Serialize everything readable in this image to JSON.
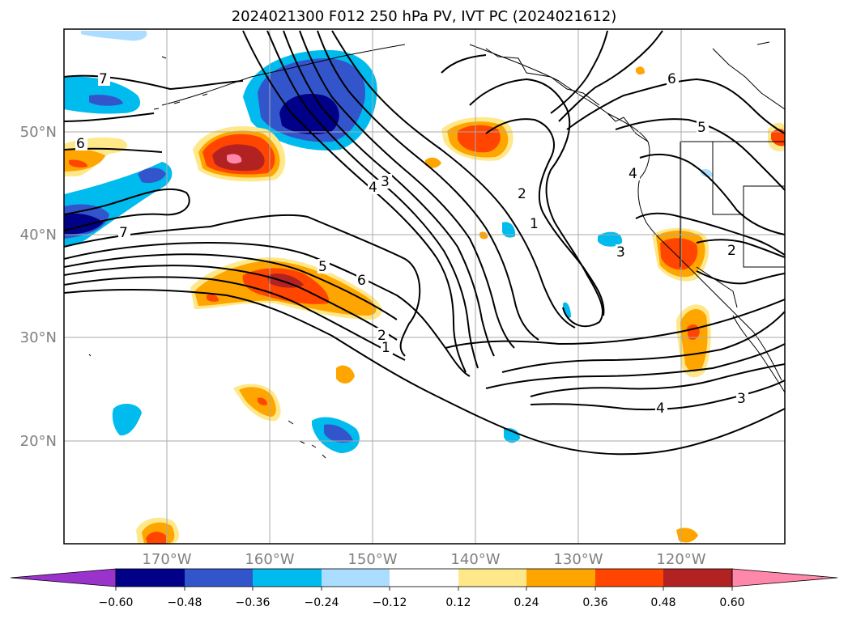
{
  "title": "2024021300 F012 250 hPa PV, IVT PC (2024021612)",
  "lat_labels": [
    "50°N",
    "40°N",
    "30°N",
    "20°N"
  ],
  "lon_labels": [
    "170°W",
    "160°W",
    "150°W",
    "140°W",
    "130°W",
    "120°W"
  ],
  "colorbar": {
    "ticks": [
      "−0.60",
      "−0.48",
      "−0.36",
      "−0.24",
      "−0.12",
      "0.12",
      "0.24",
      "0.36",
      "0.48",
      "0.60"
    ],
    "colors": [
      "#9933cc",
      "#000088",
      "#3355cc",
      "#00bbee",
      "#aaddff",
      "#ffffff",
      "#ffe88a",
      "#ffa500",
      "#ff4500",
      "#b22222",
      "#ff88aa"
    ]
  },
  "contour_labels": [
    "7",
    "6",
    "7",
    "4",
    "3",
    "5",
    "6",
    "2",
    "1",
    "2",
    "1",
    "3",
    "4",
    "5",
    "6",
    "2",
    "4",
    "3"
  ]
}
